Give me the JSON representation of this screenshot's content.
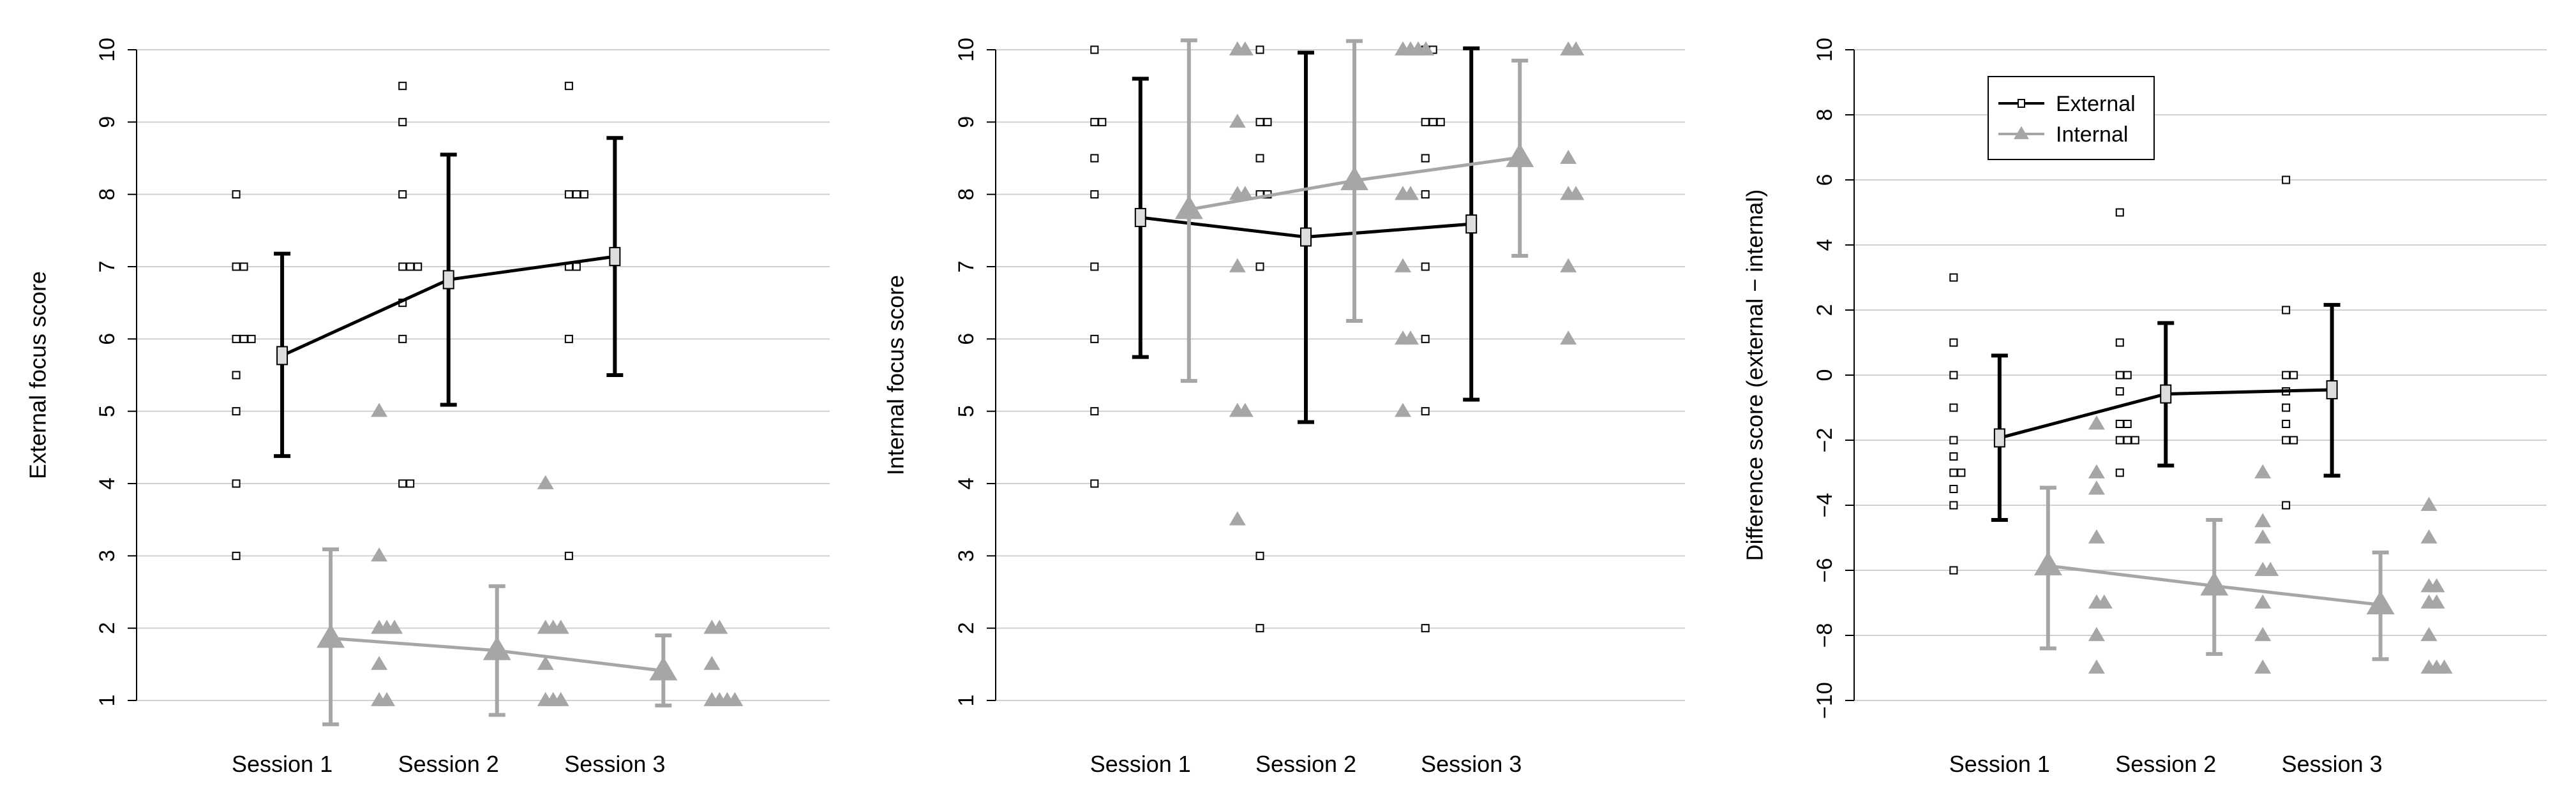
{
  "colors": {
    "external": "#000000",
    "internal": "#a6a6a6",
    "grid": "#d0d0d0"
  },
  "chart_data": [
    {
      "type": "scatter",
      "ylabel": "External focus score",
      "categories": [
        "Session 1",
        "Session 2",
        "Session 3"
      ],
      "ylim": [
        1,
        10
      ],
      "yticks": [
        1,
        2,
        3,
        4,
        5,
        6,
        7,
        8,
        9,
        10
      ],
      "grid": true,
      "series": [
        {
          "name": "External",
          "marker": "square",
          "means": [
            5.77,
            6.82,
            7.14
          ],
          "error_low": [
            4.38,
            5.09,
            5.5
          ],
          "error_high": [
            7.18,
            8.55,
            8.78
          ],
          "points": [
            [
              8,
              7,
              7,
              6,
              6,
              6,
              5.5,
              5,
              4,
              3
            ],
            [
              9.5,
              9,
              8,
              7,
              7,
              7,
              6.5,
              6,
              4,
              4
            ],
            [
              9.5,
              8,
              8,
              8,
              7,
              7,
              6,
              3
            ]
          ]
        },
        {
          "name": "Internal",
          "marker": "triangle",
          "means": [
            1.86,
            1.69,
            1.41
          ],
          "error_low": [
            0.67,
            0.8,
            0.93
          ],
          "error_high": [
            3.09,
            2.58,
            1.9
          ],
          "points": [
            [
              5,
              3,
              2,
              2,
              2,
              1.5,
              1,
              1
            ],
            [
              4,
              2,
              2,
              2,
              1.5,
              1,
              1,
              1
            ],
            [
              2,
              2,
              1.5,
              1,
              1,
              1,
              1
            ]
          ]
        }
      ]
    },
    {
      "type": "scatter",
      "ylabel": "Internal focus score",
      "categories": [
        "Session 1",
        "Session 2",
        "Session 3"
      ],
      "ylim": [
        1,
        10
      ],
      "yticks": [
        1,
        2,
        3,
        4,
        5,
        6,
        7,
        8,
        9,
        10
      ],
      "grid": true,
      "series": [
        {
          "name": "External",
          "marker": "square",
          "means": [
            7.68,
            7.41,
            7.59
          ],
          "error_low": [
            5.75,
            4.85,
            5.16
          ],
          "error_high": [
            9.6,
            9.96,
            10.02
          ],
          "points": [
            [
              10,
              9,
              9,
              8.5,
              8,
              7,
              6,
              5,
              4
            ],
            [
              10,
              9,
              9,
              8.5,
              8,
              8,
              7,
              3,
              2
            ],
            [
              10,
              10,
              9,
              9,
              9,
              8.5,
              8,
              7,
              6,
              5,
              2
            ]
          ]
        },
        {
          "name": "Internal",
          "marker": "triangle",
          "means": [
            7.79,
            8.19,
            8.51
          ],
          "error_low": [
            5.42,
            6.25,
            7.15
          ],
          "error_high": [
            10.13,
            10.12,
            9.85
          ],
          "points": [
            [
              10,
              10,
              9,
              8,
              8,
              7,
              5,
              5,
              3.5
            ],
            [
              10,
              10,
              10,
              10,
              8,
              8,
              7,
              6,
              6,
              5
            ],
            [
              10,
              10,
              8.5,
              8,
              8,
              7,
              6
            ]
          ]
        }
      ]
    },
    {
      "type": "scatter",
      "ylabel": "Difference score (external − internal)",
      "categories": [
        "Session 1",
        "Session 2",
        "Session 3"
      ],
      "ylim": [
        -10,
        10
      ],
      "yticks": [
        -10,
        -8,
        -6,
        -4,
        -2,
        0,
        2,
        4,
        6,
        8,
        10
      ],
      "grid": true,
      "legend": {
        "position": "top-left",
        "entries": [
          "External",
          "Internal"
        ]
      },
      "series": [
        {
          "name": "External",
          "marker": "square",
          "means": [
            -1.93,
            -0.58,
            -0.45
          ],
          "error_low": [
            -4.45,
            -2.78,
            -3.09
          ],
          "error_high": [
            0.6,
            1.6,
            2.16
          ],
          "points": [
            [
              3,
              1,
              0,
              -1,
              -2,
              -2.5,
              -3,
              -3,
              -3.5,
              -4,
              -6
            ],
            [
              5,
              1,
              0,
              0,
              -0.5,
              -1.5,
              -1.5,
              -2,
              -2,
              -2,
              -3
            ],
            [
              6,
              2,
              0,
              0,
              -0.5,
              -1,
              -1.5,
              -2,
              -2,
              -4
            ]
          ]
        },
        {
          "name": "Internal",
          "marker": "triangle",
          "means": [
            -5.86,
            -6.48,
            -7.06
          ],
          "error_low": [
            -8.4,
            -8.57,
            -8.73
          ],
          "error_high": [
            -3.46,
            -4.45,
            -5.45
          ],
          "points": [
            [
              -1.5,
              -3,
              -3.5,
              -5,
              -7,
              -7,
              -8,
              -9
            ],
            [
              -3,
              -4.5,
              -5,
              -6,
              -6,
              -7,
              -8,
              -9
            ],
            [
              -4,
              -5,
              -6.5,
              -6.5,
              -7,
              -7,
              -8,
              -9,
              -9,
              -9
            ]
          ]
        }
      ]
    }
  ]
}
